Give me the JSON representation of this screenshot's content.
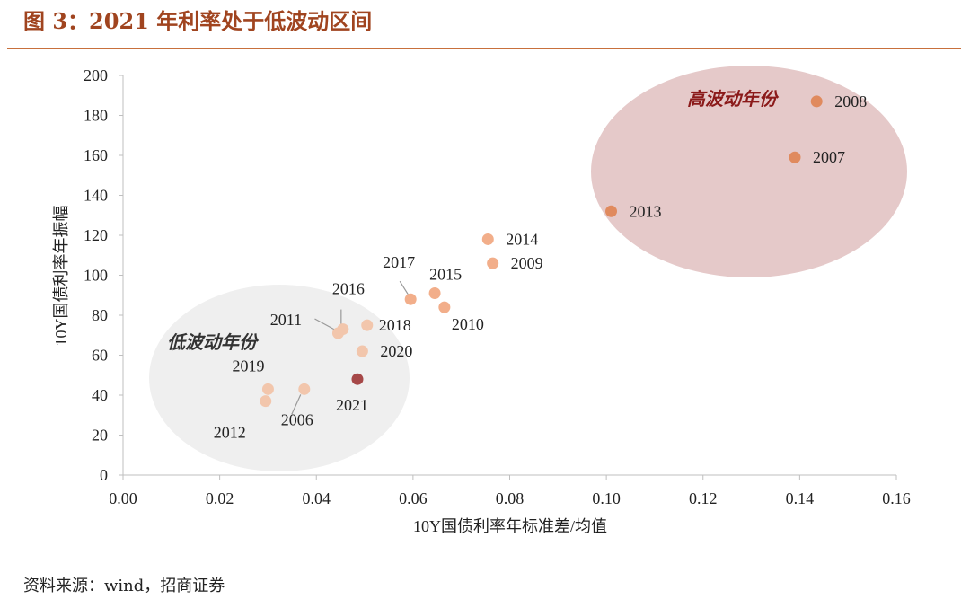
{
  "title": "图 3：2021 年利率处于低波动区间",
  "source": "资料来源：wind，招商证券",
  "chart_data": {
    "type": "scatter",
    "xlabel": "10Y国债利率年标准差/均值",
    "ylabel": "10Y国债利率年振幅",
    "xlim": [
      0,
      0.16
    ],
    "ylim": [
      0,
      200
    ],
    "xticks": [
      "0.00",
      "0.02",
      "0.04",
      "0.06",
      "0.08",
      "0.10",
      "0.12",
      "0.14",
      "0.16"
    ],
    "yticks": [
      "0",
      "20",
      "40",
      "60",
      "80",
      "100",
      "120",
      "140",
      "160",
      "180",
      "200"
    ],
    "grid": false,
    "annotations": [
      {
        "text": "高波动年份",
        "color": "#8b1a1a"
      },
      {
        "text": "低波动年份",
        "color": "#333333"
      }
    ],
    "points": [
      {
        "label": "2008",
        "x": 0.1435,
        "y": 187,
        "color": "#e08a5e"
      },
      {
        "label": "2007",
        "x": 0.139,
        "y": 159,
        "color": "#e08a5e"
      },
      {
        "label": "2013",
        "x": 0.101,
        "y": 132,
        "color": "#e08a5e"
      },
      {
        "label": "2014",
        "x": 0.0755,
        "y": 118,
        "color": "#f2ae8a"
      },
      {
        "label": "2009",
        "x": 0.0765,
        "y": 106,
        "color": "#f2ae8a"
      },
      {
        "label": "2017",
        "x": 0.0595,
        "y": 88,
        "color": "#f2ae8a"
      },
      {
        "label": "2015",
        "x": 0.0645,
        "y": 91,
        "color": "#f2ae8a"
      },
      {
        "label": "2010",
        "x": 0.0665,
        "y": 84,
        "color": "#f2ae8a"
      },
      {
        "label": "2016",
        "x": 0.0455,
        "y": 73,
        "color": "#f2c6ac"
      },
      {
        "label": "2011",
        "x": 0.0445,
        "y": 71,
        "color": "#f2c6ac"
      },
      {
        "label": "2018",
        "x": 0.0505,
        "y": 75,
        "color": "#f2c6ac"
      },
      {
        "label": "2020",
        "x": 0.0495,
        "y": 62,
        "color": "#f2c6ac"
      },
      {
        "label": "2021",
        "x": 0.0485,
        "y": 48,
        "color": "#a64848"
      },
      {
        "label": "2019",
        "x": 0.03,
        "y": 43,
        "color": "#f2c6ac"
      },
      {
        "label": "2006",
        "x": 0.0375,
        "y": 43,
        "color": "#f2c6ac"
      },
      {
        "label": "2012",
        "x": 0.0295,
        "y": 37,
        "color": "#f2c6ac"
      }
    ]
  }
}
